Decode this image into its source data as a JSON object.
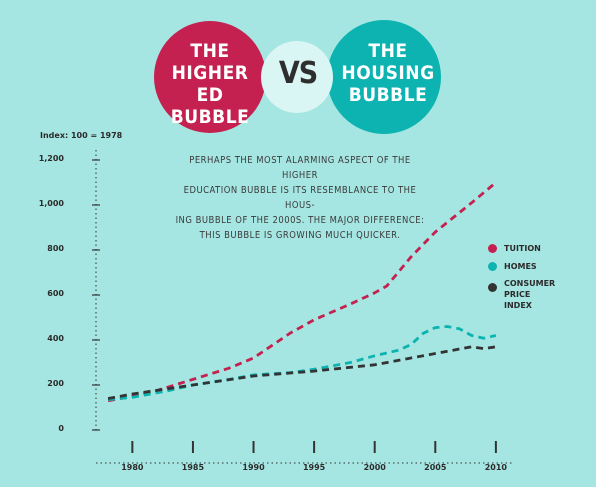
{
  "header": {
    "left_title": [
      "THE",
      "HIGHER ED",
      "BUBBLE"
    ],
    "vs": "VS",
    "right_title": [
      "THE",
      "HOUSING",
      "BUBBLE"
    ],
    "left_color": "#c42150",
    "right_color": "#0cb3b0",
    "overlap_color": "#d9f6f4"
  },
  "annotation": [
    "PERHAPS THE MOST ALARMING ASPECT OF THE HIGHER",
    "EDUCATION BUBBLE IS ITS RESEMBLANCE TO THE HOUS-",
    "ING BUBBLE OF THE 2000S. THE MAJOR DIFFERENCE:",
    "THIS BUBBLE IS GROWING MUCH QUICKER."
  ],
  "chart_data": {
    "type": "line",
    "title": "",
    "ylabel": "Index: 100 = 1978",
    "xlabel": "",
    "xlim": [
      1977,
      2011
    ],
    "ylim": [
      0,
      1200
    ],
    "yticks": [
      0,
      200,
      400,
      600,
      800,
      1000,
      1200
    ],
    "ytick_labels": [
      "0",
      "200",
      "400",
      "600",
      "800",
      "1,000",
      "1,200"
    ],
    "xticks": [
      1980,
      1985,
      1990,
      1995,
      2000,
      2005,
      2010
    ],
    "grid": false,
    "legend_position": "right",
    "series": [
      {
        "name": "TUITION",
        "color": "#c42150",
        "x": [
          1978,
          1980,
          1982,
          1985,
          1988,
          1990,
          1993,
          1995,
          1998,
          2000,
          2001,
          2003,
          2005,
          2008,
          2010
        ],
        "y": [
          130,
          150,
          175,
          225,
          275,
          320,
          430,
          490,
          560,
          610,
          640,
          770,
          880,
          1010,
          1100
        ]
      },
      {
        "name": "HOMES",
        "color": "#0cb3b0",
        "x": [
          1978,
          1980,
          1983,
          1985,
          1988,
          1990,
          1993,
          1995,
          1998,
          2000,
          2002,
          2003,
          2004,
          2005,
          2006,
          2007,
          2008,
          2009,
          2010
        ],
        "y": [
          135,
          145,
          175,
          200,
          225,
          245,
          255,
          270,
          300,
          330,
          355,
          380,
          430,
          455,
          460,
          450,
          420,
          408,
          420
        ]
      },
      {
        "name": "CONSUMER PRICE INDEX",
        "color": "#333333",
        "x": [
          1978,
          1980,
          1985,
          1990,
          1995,
          2000,
          2005,
          2008,
          2009,
          2010
        ],
        "y": [
          140,
          160,
          200,
          240,
          262,
          290,
          340,
          370,
          362,
          370
        ]
      }
    ]
  },
  "legend": [
    {
      "lines": [
        "TUITION"
      ],
      "color": "#c42150"
    },
    {
      "lines": [
        "HOMES"
      ],
      "color": "#0cb3b0"
    },
    {
      "lines": [
        "CONSUMER",
        "PRICE",
        "INDEX"
      ],
      "color": "#333333"
    }
  ]
}
